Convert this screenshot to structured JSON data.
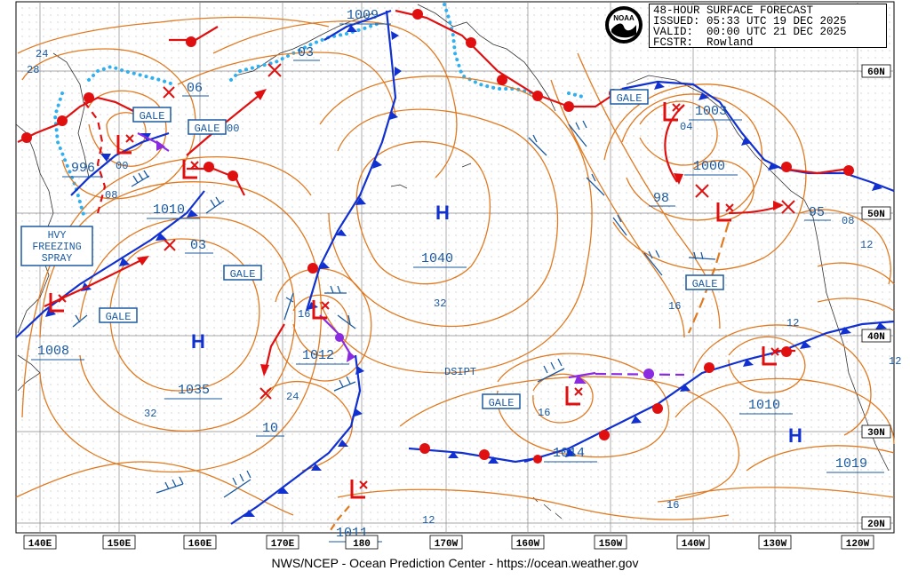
{
  "header": {
    "title": "48-HOUR SURFACE FORECAST",
    "issued": "ISSUED: 05:33 UTC 19 DEC 2025",
    "valid": "VALID:  00:00 UTC 21 DEC 2025",
    "forecaster": "FCSTR:  Rowland"
  },
  "logo": {
    "name": "noaa-logo",
    "text": "NOAA"
  },
  "footer": "NWS/NCEP - Ocean Prediction Center - https://ocean.weather.gov",
  "lat_labels": [
    "60N",
    "50N",
    "40N",
    "30N",
    "20N"
  ],
  "lon_labels": [
    "140E",
    "150E",
    "160E",
    "170E",
    "180",
    "170W",
    "160W",
    "150W",
    "140W",
    "130W",
    "120W"
  ],
  "pressure_centers": [
    {
      "type": "H",
      "value": "1040"
    },
    {
      "type": "H",
      "value": "1035"
    },
    {
      "type": "H",
      "value": "1019"
    },
    {
      "type": "L",
      "value": "996"
    },
    {
      "type": "L",
      "value": "1010"
    },
    {
      "type": "L",
      "value": "1008"
    },
    {
      "type": "L",
      "value": "1012"
    },
    {
      "type": "L",
      "value": "1003"
    },
    {
      "type": "L",
      "value": "1000"
    },
    {
      "type": "L",
      "value": "1014"
    },
    {
      "type": "L",
      "value": "1010"
    },
    {
      "type": "L",
      "value": "1011"
    },
    {
      "type": "L",
      "value": "1009"
    }
  ],
  "past_positions": [
    "03",
    "06",
    "03",
    "00",
    "98",
    "95",
    "04",
    "10"
  ],
  "warnings": [
    "GALE",
    "GALE",
    "GALE",
    "GALE",
    "GALE",
    "GALE",
    "GALE"
  ],
  "special_box": [
    "HVY",
    "FREEZING",
    "SPRAY"
  ],
  "dissipating": "DSIPT",
  "isobar_labels": [
    "24",
    "28",
    "08",
    "00",
    "32",
    "32",
    "16",
    "24",
    "16",
    "16",
    "12",
    "12",
    "08",
    "12",
    "16",
    "12"
  ],
  "colors": {
    "isobar": "#e07a20",
    "cold_front": "#1030d0",
    "warm_front": "#e01010",
    "occluded": "#8a2be2",
    "ice_edge": "#30b0f0",
    "label_text": "#1a5aa0",
    "grid": "#999999"
  }
}
